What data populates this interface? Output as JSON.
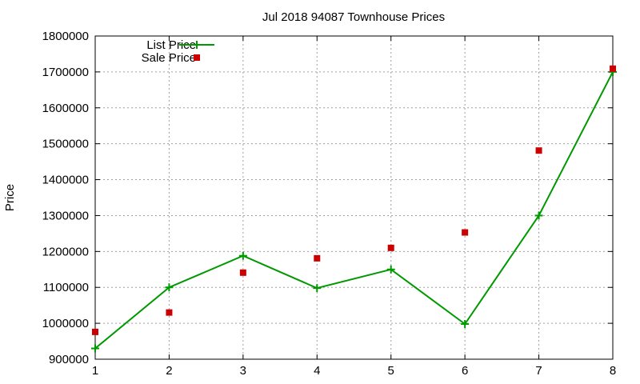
{
  "chart_data": {
    "type": "line",
    "title": "Jul 2018 94087 Townhouse Prices",
    "xlabel": "",
    "ylabel": "Price",
    "x": [
      1,
      2,
      3,
      4,
      5,
      6,
      7,
      8
    ],
    "xlim": [
      1,
      8
    ],
    "ylim": [
      900000,
      1800000
    ],
    "x_ticks": [
      "1",
      "2",
      "3",
      "4",
      "5",
      "6",
      "7",
      "8"
    ],
    "y_ticks": [
      "900000",
      "1000000",
      "1100000",
      "1200000",
      "1300000",
      "1400000",
      "1500000",
      "1600000",
      "1700000",
      "1800000"
    ],
    "grid": true,
    "legend_position": "top-left",
    "series": [
      {
        "name": "List Price",
        "style": "line+cross",
        "color": "#009900",
        "values": [
          930000,
          1100000,
          1188000,
          1098000,
          1150000,
          998000,
          1300000,
          1700000
        ]
      },
      {
        "name": "Sale Price",
        "style": "square",
        "color": "#cc0000",
        "values": [
          976000,
          1030000,
          1141000,
          1181000,
          1210000,
          1253000,
          1481000,
          1709000
        ]
      }
    ]
  }
}
